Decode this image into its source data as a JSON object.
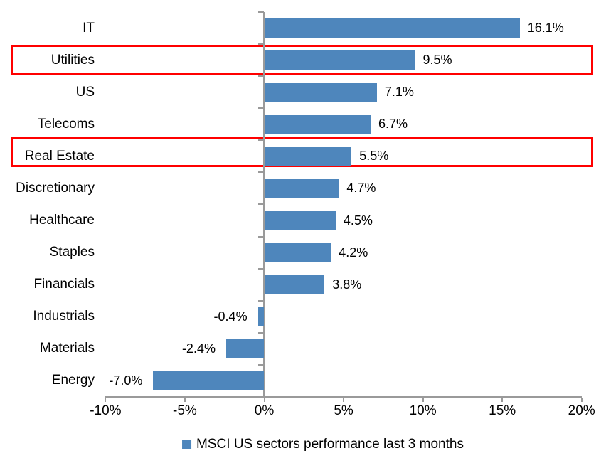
{
  "chart_data": {
    "type": "bar",
    "orientation": "horizontal",
    "title": "",
    "categories": [
      "IT",
      "Utilities",
      "US",
      "Telecoms",
      "Real Estate",
      "Discretionary",
      "Healthcare",
      "Staples",
      "Financials",
      "Industrials",
      "Materials",
      "Energy"
    ],
    "values": [
      16.1,
      9.5,
      7.1,
      6.7,
      5.5,
      4.7,
      4.5,
      4.2,
      3.8,
      -0.4,
      -2.4,
      -7.0
    ],
    "value_labels": [
      "16.1%",
      "9.5%",
      "7.1%",
      "6.7%",
      "5.5%",
      "4.7%",
      "4.5%",
      "4.2%",
      "3.8%",
      "-0.4%",
      "-2.4%",
      "-7.0%"
    ],
    "x_tick_values": [
      -10,
      -5,
      0,
      5,
      10,
      15,
      20
    ],
    "x_tick_labels": [
      "-10%",
      "-5%",
      "0%",
      "5%",
      "10%",
      "15%",
      "20%"
    ],
    "xlim": [
      -10,
      20
    ],
    "grid": false,
    "legend": "MSCI US sectors performance last 3 months",
    "legend_position": "bottom-center",
    "bar_color": "#4E86BC",
    "axis_color": "#9A9A9A",
    "text_color": "#000000",
    "highlight_box_color": "#FF0000",
    "highlighted_categories": [
      "Utilities",
      "Real Estate"
    ]
  }
}
